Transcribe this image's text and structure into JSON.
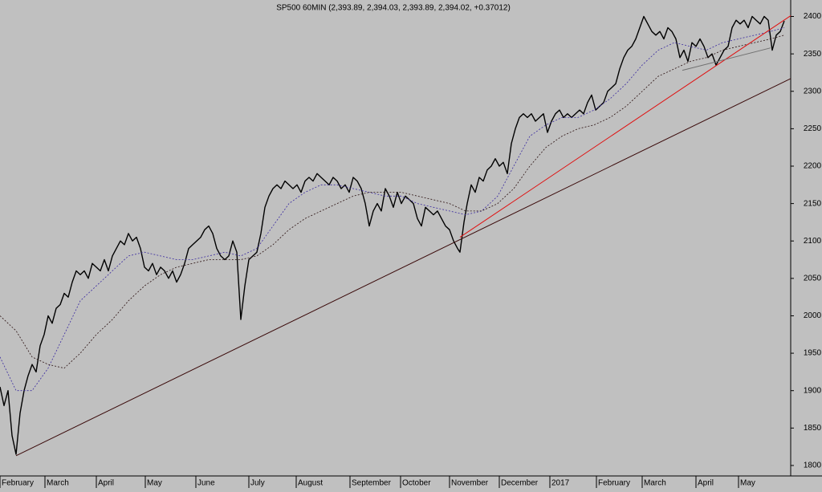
{
  "chart_data": {
    "type": "line",
    "title": "SP500 60MIN (2,393.89, 2,394.03, 2,393.89, 2,394.02, +0.37012)",
    "background": "#c0c0c0",
    "xlim": [
      0,
      985
    ],
    "ylim": [
      1786,
      2422
    ],
    "yticks": [
      1800,
      1850,
      1900,
      1950,
      2000,
      2050,
      2100,
      2150,
      2200,
      2250,
      2300,
      2350,
      2400
    ],
    "xticks": [
      {
        "value": 0,
        "label": "February"
      },
      {
        "value": 56,
        "label": "March"
      },
      {
        "value": 120,
        "label": "April"
      },
      {
        "value": 181,
        "label": "May"
      },
      {
        "value": 244,
        "label": "June"
      },
      {
        "value": 310,
        "label": "July"
      },
      {
        "value": 369,
        "label": "August"
      },
      {
        "value": 436,
        "label": "September"
      },
      {
        "value": 499,
        "label": "October"
      },
      {
        "value": 560,
        "label": "November"
      },
      {
        "value": 622,
        "label": "December"
      },
      {
        "value": 685,
        "label": "2017"
      },
      {
        "value": 743,
        "label": "February"
      },
      {
        "value": 800,
        "label": "March"
      },
      {
        "value": 867,
        "label": "April"
      },
      {
        "value": 920,
        "label": "May"
      }
    ],
    "series": [
      {
        "color": "#000000",
        "dash": false,
        "width": 1.4,
        "x": [
          0,
          5,
          10,
          15,
          20,
          25,
          30,
          35,
          40,
          45,
          50,
          55,
          60,
          65,
          70,
          75,
          80,
          85,
          90,
          95,
          100,
          105,
          110,
          115,
          120,
          125,
          130,
          135,
          140,
          145,
          150,
          155,
          160,
          165,
          170,
          175,
          180,
          185,
          190,
          195,
          200,
          205,
          210,
          215,
          220,
          225,
          230,
          235,
          240,
          245,
          250,
          255,
          260,
          265,
          270,
          275,
          280,
          285,
          290,
          295,
          300,
          305,
          310,
          315,
          320,
          325,
          330,
          335,
          340,
          345,
          350,
          355,
          360,
          365,
          370,
          375,
          380,
          385,
          390,
          395,
          400,
          405,
          410,
          415,
          420,
          425,
          430,
          435,
          440,
          445,
          450,
          455,
          460,
          465,
          470,
          475,
          480,
          485,
          490,
          495,
          500,
          505,
          510,
          515,
          520,
          525,
          530,
          535,
          540,
          545,
          550,
          555,
          560,
          565,
          570,
          573,
          578,
          582,
          587,
          592,
          597,
          602,
          607,
          612,
          617,
          622,
          627,
          632,
          637,
          642,
          647,
          652,
          657,
          662,
          667,
          672,
          677,
          682,
          687,
          692,
          697,
          702,
          707,
          712,
          717,
          722,
          727,
          732,
          737,
          742,
          747,
          752,
          757,
          762,
          767,
          772,
          777,
          782,
          787,
          792,
          797,
          802,
          807,
          812,
          817,
          822,
          827,
          832,
          837,
          842,
          847,
          852,
          857,
          862,
          867,
          872,
          877,
          882,
          887,
          892,
          897,
          902,
          907,
          912,
          917,
          922,
          927,
          932,
          937,
          942,
          947,
          952,
          957,
          962,
          967,
          972,
          977
        ],
        "values": [
          1905,
          1880,
          1900,
          1840,
          1815,
          1870,
          1900,
          1920,
          1935,
          1925,
          1960,
          1975,
          2000,
          1990,
          2010,
          2015,
          2030,
          2025,
          2045,
          2060,
          2055,
          2060,
          2050,
          2070,
          2065,
          2060,
          2075,
          2060,
          2080,
          2090,
          2100,
          2095,
          2110,
          2100,
          2105,
          2090,
          2065,
          2060,
          2070,
          2055,
          2065,
          2060,
          2050,
          2060,
          2045,
          2055,
          2070,
          2090,
          2095,
          2100,
          2105,
          2115,
          2120,
          2110,
          2090,
          2080,
          2075,
          2080,
          2100,
          2085,
          1995,
          2040,
          2075,
          2080,
          2085,
          2110,
          2145,
          2160,
          2170,
          2175,
          2170,
          2180,
          2175,
          2170,
          2175,
          2165,
          2180,
          2185,
          2180,
          2190,
          2185,
          2180,
          2175,
          2185,
          2180,
          2170,
          2175,
          2165,
          2185,
          2180,
          2170,
          2150,
          2120,
          2140,
          2150,
          2140,
          2170,
          2160,
          2145,
          2165,
          2150,
          2160,
          2155,
          2150,
          2130,
          2120,
          2145,
          2140,
          2135,
          2140,
          2130,
          2120,
          2115,
          2100,
          2090,
          2085,
          2125,
          2150,
          2175,
          2165,
          2185,
          2180,
          2195,
          2200,
          2210,
          2200,
          2205,
          2190,
          2230,
          2250,
          2265,
          2270,
          2265,
          2270,
          2260,
          2265,
          2270,
          2245,
          2260,
          2270,
          2275,
          2265,
          2270,
          2265,
          2270,
          2275,
          2270,
          2285,
          2295,
          2275,
          2280,
          2285,
          2300,
          2305,
          2310,
          2330,
          2345,
          2355,
          2360,
          2370,
          2385,
          2400,
          2390,
          2380,
          2375,
          2380,
          2370,
          2385,
          2380,
          2370,
          2345,
          2355,
          2340,
          2365,
          2360,
          2370,
          2360,
          2345,
          2350,
          2335,
          2345,
          2355,
          2360,
          2385,
          2395,
          2390,
          2395,
          2385,
          2400,
          2395,
          2390,
          2400,
          2395,
          2355,
          2375,
          2380,
          2394
        ]
      },
      {
        "color": "#3a2aa0",
        "dash": true,
        "width": 0.8,
        "x": [
          0,
          20,
          40,
          60,
          80,
          100,
          120,
          140,
          160,
          180,
          200,
          220,
          240,
          260,
          280,
          300,
          320,
          340,
          360,
          380,
          400,
          420,
          440,
          460,
          480,
          500,
          520,
          540,
          560,
          580,
          600,
          620,
          640,
          660,
          680,
          700,
          720,
          740,
          760,
          780,
          800,
          820,
          840,
          860,
          880,
          900,
          920,
          940,
          960,
          977
        ],
        "values": [
          1945,
          1900,
          1900,
          1930,
          1975,
          2020,
          2040,
          2060,
          2080,
          2085,
          2080,
          2075,
          2075,
          2080,
          2085,
          2080,
          2090,
          2120,
          2150,
          2165,
          2175,
          2175,
          2170,
          2165,
          2160,
          2160,
          2150,
          2145,
          2140,
          2135,
          2140,
          2160,
          2200,
          2240,
          2255,
          2265,
          2265,
          2275,
          2290,
          2310,
          2335,
          2355,
          2365,
          2360,
          2355,
          2365,
          2370,
          2375,
          2380,
          2385
        ]
      },
      {
        "color": "#2a1010",
        "dash": true,
        "width": 0.8,
        "x": [
          0,
          20,
          40,
          60,
          80,
          100,
          120,
          140,
          160,
          180,
          200,
          220,
          240,
          260,
          280,
          300,
          320,
          340,
          360,
          380,
          400,
          420,
          440,
          460,
          480,
          500,
          520,
          540,
          560,
          580,
          600,
          620,
          640,
          660,
          680,
          700,
          720,
          740,
          760,
          780,
          800,
          820,
          840,
          860,
          880,
          900,
          920,
          940,
          960,
          977
        ],
        "values": [
          2000,
          1980,
          1945,
          1935,
          1930,
          1950,
          1975,
          1995,
          2020,
          2040,
          2055,
          2065,
          2070,
          2075,
          2075,
          2075,
          2080,
          2095,
          2115,
          2130,
          2140,
          2150,
          2160,
          2165,
          2165,
          2165,
          2160,
          2155,
          2150,
          2140,
          2140,
          2150,
          2170,
          2200,
          2225,
          2240,
          2250,
          2255,
          2265,
          2280,
          2300,
          2320,
          2330,
          2340,
          2345,
          2355,
          2360,
          2365,
          2370,
          2375
        ]
      },
      {
        "color": "#3a0a0a",
        "dash": false,
        "width": 1,
        "x": [
          20,
          985
        ],
        "values": [
          1813,
          2317
        ]
      },
      {
        "color": "#e01010",
        "dash": false,
        "width": 1,
        "x": [
          573,
          985
        ],
        "values": [
          2105,
          2401
        ]
      },
      {
        "color": "#707070",
        "dash": false,
        "width": 1,
        "x": [
          850,
          960
        ],
        "values": [
          2328,
          2358
        ]
      }
    ]
  }
}
